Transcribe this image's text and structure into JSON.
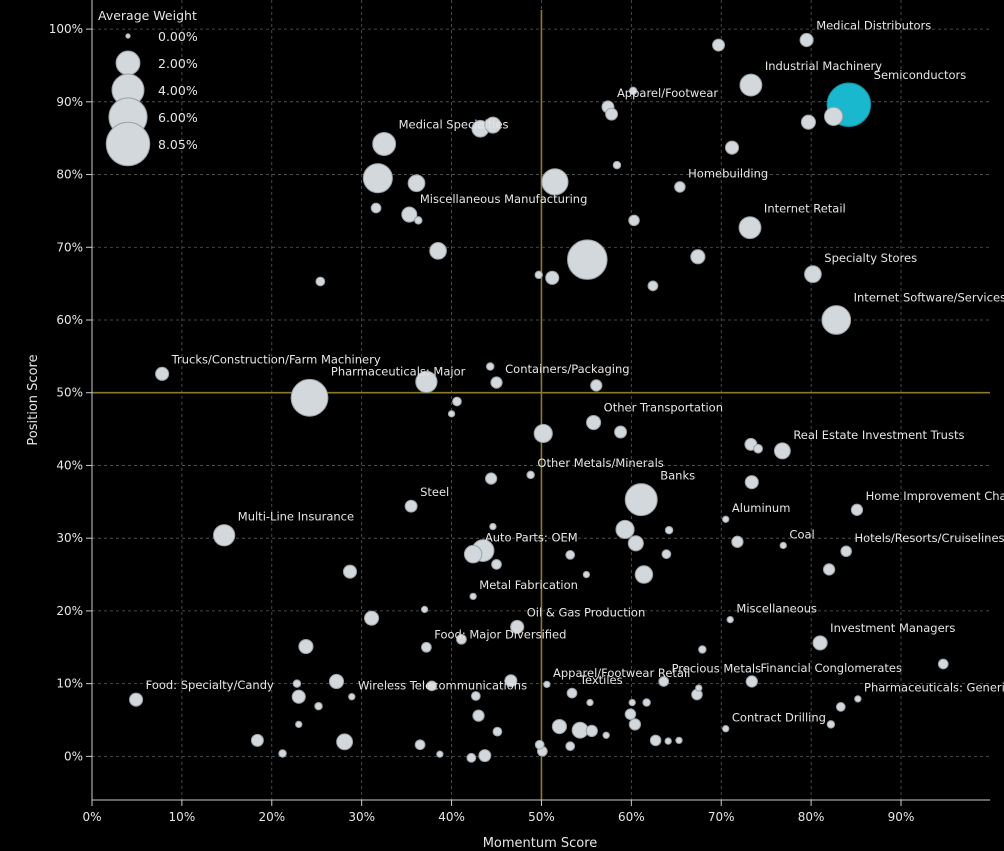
{
  "chart_data": {
    "type": "scatter",
    "xlabel": "Momentum Score",
    "ylabel": "Position Score",
    "xlim": [
      0,
      0.999
    ],
    "ylim": [
      -0.06,
      1.04
    ],
    "x_ticks": [
      "0%",
      "10%",
      "20%",
      "30%",
      "40%",
      "50%",
      "60%",
      "70%",
      "80%",
      "90%"
    ],
    "y_ticks": [
      "0%",
      "10%",
      "20%",
      "30%",
      "40%",
      "50%",
      "60%",
      "70%",
      "80%",
      "90%",
      "100%"
    ],
    "grid": true,
    "reference_lines": {
      "x": 0.5,
      "y": 0.5,
      "color": "#8a7a2a"
    },
    "legend": {
      "title": "Average Weight",
      "placement": "top-left",
      "entries": [
        {
          "label": "0.00%",
          "weight": 0.0
        },
        {
          "label": "2.00%",
          "weight": 2.0
        },
        {
          "label": "4.00%",
          "weight": 4.0
        },
        {
          "label": "6.00%",
          "weight": 6.0
        },
        {
          "label": "8.05%",
          "weight": 8.05
        }
      ]
    },
    "colors": {
      "default": "#d3d8dc",
      "highlight": "#1ab8cf"
    },
    "points": [
      {
        "x": 0.795,
        "y": 0.985,
        "w": 0.4,
        "label": "Medical Distributors"
      },
      {
        "x": 0.697,
        "y": 0.978,
        "w": 0.3
      },
      {
        "x": 0.733,
        "y": 0.923,
        "w": 1.6,
        "label": "Industrial Machinery"
      },
      {
        "x": 0.842,
        "y": 0.896,
        "w": 8.05,
        "label": "Semiconductors",
        "highlight": true
      },
      {
        "x": 0.825,
        "y": 0.88,
        "w": 1.0
      },
      {
        "x": 0.797,
        "y": 0.872,
        "w": 0.5
      },
      {
        "x": 0.602,
        "y": 0.915,
        "w": 0.05
      },
      {
        "x": 0.574,
        "y": 0.893,
        "w": 0.3,
        "label": "Apparel/Footwear"
      },
      {
        "x": 0.578,
        "y": 0.883,
        "w": 0.3
      },
      {
        "x": 0.432,
        "y": 0.863,
        "w": 0.8
      },
      {
        "x": 0.446,
        "y": 0.868,
        "w": 0.7
      },
      {
        "x": 0.325,
        "y": 0.842,
        "w": 1.8,
        "label": "Medical Specialties"
      },
      {
        "x": 0.712,
        "y": 0.837,
        "w": 0.4
      },
      {
        "x": 0.584,
        "y": 0.813,
        "w": 0.05
      },
      {
        "x": 0.318,
        "y": 0.795,
        "w": 3.2
      },
      {
        "x": 0.361,
        "y": 0.788,
        "w": 0.8
      },
      {
        "x": 0.515,
        "y": 0.79,
        "w": 2.5
      },
      {
        "x": 0.654,
        "y": 0.783,
        "w": 0.2,
        "label": "Homebuilding"
      },
      {
        "x": 0.316,
        "y": 0.754,
        "w": 0.15
      },
      {
        "x": 0.353,
        "y": 0.745,
        "w": 0.6,
        "label": "Miscellaneous Manufacturing"
      },
      {
        "x": 0.363,
        "y": 0.737,
        "w": 0.05
      },
      {
        "x": 0.603,
        "y": 0.737,
        "w": 0.2
      },
      {
        "x": 0.732,
        "y": 0.727,
        "w": 1.6,
        "label": "Internet Retail"
      },
      {
        "x": 0.385,
        "y": 0.695,
        "w": 0.8
      },
      {
        "x": 0.551,
        "y": 0.683,
        "w": 6.5
      },
      {
        "x": 0.674,
        "y": 0.687,
        "w": 0.5
      },
      {
        "x": 0.802,
        "y": 0.663,
        "w": 0.8,
        "label": "Specialty Stores"
      },
      {
        "x": 0.497,
        "y": 0.662,
        "w": 0.05
      },
      {
        "x": 0.512,
        "y": 0.658,
        "w": 0.4
      },
      {
        "x": 0.624,
        "y": 0.647,
        "w": 0.15
      },
      {
        "x": 0.254,
        "y": 0.653,
        "w": 0.1
      },
      {
        "x": 0.828,
        "y": 0.6,
        "w": 3.1,
        "label": "Internet Software/Services"
      },
      {
        "x": 0.078,
        "y": 0.526,
        "w": 0.4,
        "label": "Trucks/Construction/Farm Machinery"
      },
      {
        "x": 0.372,
        "y": 0.515,
        "w": 1.5
      },
      {
        "x": 0.443,
        "y": 0.536,
        "w": 0.05
      },
      {
        "x": 0.45,
        "y": 0.514,
        "w": 0.25,
        "label": "Containers/Packaging"
      },
      {
        "x": 0.561,
        "y": 0.51,
        "w": 0.25
      },
      {
        "x": 0.242,
        "y": 0.493,
        "w": 5.5,
        "label": "Pharmaceuticals: Major"
      },
      {
        "x": 0.406,
        "y": 0.488,
        "w": 0.1
      },
      {
        "x": 0.4,
        "y": 0.471,
        "w": 0.02
      },
      {
        "x": 0.558,
        "y": 0.459,
        "w": 0.5,
        "label": "Other Transportation"
      },
      {
        "x": 0.588,
        "y": 0.446,
        "w": 0.3
      },
      {
        "x": 0.502,
        "y": 0.444,
        "w": 1.0
      },
      {
        "x": 0.768,
        "y": 0.42,
        "w": 0.7,
        "label": "Real Estate Investment Trusts"
      },
      {
        "x": 0.733,
        "y": 0.429,
        "w": 0.3
      },
      {
        "x": 0.741,
        "y": 0.423,
        "w": 0.1
      },
      {
        "x": 0.488,
        "y": 0.387,
        "w": 0.05,
        "label": "Other Metals/Minerals"
      },
      {
        "x": 0.444,
        "y": 0.382,
        "w": 0.25
      },
      {
        "x": 0.734,
        "y": 0.377,
        "w": 0.4
      },
      {
        "x": 0.611,
        "y": 0.353,
        "w": 4.0,
        "label": "Banks"
      },
      {
        "x": 0.355,
        "y": 0.344,
        "w": 0.3,
        "label": "Steel"
      },
      {
        "x": 0.851,
        "y": 0.339,
        "w": 0.25,
        "label": "Home Improvement Chains"
      },
      {
        "x": 0.147,
        "y": 0.304,
        "w": 1.5,
        "label": "Multi-Line Insurance"
      },
      {
        "x": 0.446,
        "y": 0.316,
        "w": 0.02
      },
      {
        "x": 0.705,
        "y": 0.326,
        "w": 0.02,
        "label": "Aluminum"
      },
      {
        "x": 0.593,
        "y": 0.312,
        "w": 1.0
      },
      {
        "x": 0.642,
        "y": 0.311,
        "w": 0.05
      },
      {
        "x": 0.605,
        "y": 0.293,
        "w": 0.6
      },
      {
        "x": 0.718,
        "y": 0.295,
        "w": 0.25
      },
      {
        "x": 0.769,
        "y": 0.29,
        "w": 0.02,
        "label": "Coal"
      },
      {
        "x": 0.839,
        "y": 0.282,
        "w": 0.2,
        "label": "Hotels/Resorts/Cruiselines"
      },
      {
        "x": 0.435,
        "y": 0.283,
        "w": 1.6
      },
      {
        "x": 0.424,
        "y": 0.278,
        "w": 0.9,
        "label": "Auto Parts: OEM"
      },
      {
        "x": 0.45,
        "y": 0.264,
        "w": 0.15
      },
      {
        "x": 0.532,
        "y": 0.277,
        "w": 0.1
      },
      {
        "x": 0.639,
        "y": 0.278,
        "w": 0.1
      },
      {
        "x": 0.287,
        "y": 0.254,
        "w": 0.4
      },
      {
        "x": 0.82,
        "y": 0.257,
        "w": 0.25
      },
      {
        "x": 0.614,
        "y": 0.25,
        "w": 0.9
      },
      {
        "x": 0.55,
        "y": 0.25,
        "w": 0.02
      },
      {
        "x": 0.424,
        "y": 0.22,
        "w": 0.02,
        "label": "Metal Fabrication"
      },
      {
        "x": 0.37,
        "y": 0.202,
        "w": 0.02
      },
      {
        "x": 0.311,
        "y": 0.19,
        "w": 0.5
      },
      {
        "x": 0.473,
        "y": 0.178,
        "w": 0.4,
        "label": "Oil & Gas Production"
      },
      {
        "x": 0.71,
        "y": 0.188,
        "w": 0.02,
        "label": "Miscellaneous"
      },
      {
        "x": 0.411,
        "y": 0.161,
        "w": 0.15
      },
      {
        "x": 0.238,
        "y": 0.151,
        "w": 0.5
      },
      {
        "x": 0.372,
        "y": 0.15,
        "w": 0.15,
        "label": "Food: Major Diversified"
      },
      {
        "x": 0.81,
        "y": 0.156,
        "w": 0.5,
        "label": "Investment Managers"
      },
      {
        "x": 0.679,
        "y": 0.147,
        "w": 0.05
      },
      {
        "x": 0.947,
        "y": 0.127,
        "w": 0.15
      },
      {
        "x": 0.272,
        "y": 0.103,
        "w": 0.5
      },
      {
        "x": 0.228,
        "y": 0.1,
        "w": 0.05
      },
      {
        "x": 0.378,
        "y": 0.097,
        "w": 0.15
      },
      {
        "x": 0.466,
        "y": 0.104,
        "w": 0.3
      },
      {
        "x": 0.506,
        "y": 0.099,
        "w": 0.02,
        "label": "Apparel/Footwear Retail"
      },
      {
        "x": 0.636,
        "y": 0.103,
        "w": 0.15,
        "label": "Precious Metals"
      },
      {
        "x": 0.675,
        "y": 0.094,
        "w": 0.02
      },
      {
        "x": 0.734,
        "y": 0.103,
        "w": 0.25,
        "label": "Financial Conglomerates"
      },
      {
        "x": 0.049,
        "y": 0.078,
        "w": 0.4,
        "label": "Food: Specialty/Candy"
      },
      {
        "x": 0.23,
        "y": 0.082,
        "w": 0.4
      },
      {
        "x": 0.252,
        "y": 0.069,
        "w": 0.05
      },
      {
        "x": 0.427,
        "y": 0.083,
        "w": 0.1
      },
      {
        "x": 0.534,
        "y": 0.087,
        "w": 0.15,
        "label": "Textiles"
      },
      {
        "x": 0.554,
        "y": 0.074,
        "w": 0.02
      },
      {
        "x": 0.601,
        "y": 0.074,
        "w": 0.02
      },
      {
        "x": 0.617,
        "y": 0.074,
        "w": 0.05
      },
      {
        "x": 0.673,
        "y": 0.085,
        "w": 0.2
      },
      {
        "x": 0.852,
        "y": 0.079,
        "w": 0.02,
        "label": "Pharmaceuticals: Generic"
      },
      {
        "x": 0.833,
        "y": 0.068,
        "w": 0.1
      },
      {
        "x": 0.822,
        "y": 0.044,
        "w": 0.05
      },
      {
        "x": 0.705,
        "y": 0.038,
        "w": 0.02,
        "label": "Contract Drilling"
      },
      {
        "x": 0.43,
        "y": 0.056,
        "w": 0.25
      },
      {
        "x": 0.599,
        "y": 0.058,
        "w": 0.2
      },
      {
        "x": 0.604,
        "y": 0.044,
        "w": 0.25
      },
      {
        "x": 0.289,
        "y": 0.082,
        "w": 0.02,
        "label": "Wireless Telecommunications"
      },
      {
        "x": 0.23,
        "y": 0.044,
        "w": 0.02
      },
      {
        "x": 0.52,
        "y": 0.041,
        "w": 0.5
      },
      {
        "x": 0.543,
        "y": 0.036,
        "w": 0.7
      },
      {
        "x": 0.556,
        "y": 0.035,
        "w": 0.25
      },
      {
        "x": 0.572,
        "y": 0.029,
        "w": 0.02
      },
      {
        "x": 0.451,
        "y": 0.034,
        "w": 0.1
      },
      {
        "x": 0.184,
        "y": 0.022,
        "w": 0.3
      },
      {
        "x": 0.281,
        "y": 0.02,
        "w": 0.7
      },
      {
        "x": 0.365,
        "y": 0.016,
        "w": 0.15
      },
      {
        "x": 0.498,
        "y": 0.016,
        "w": 0.1
      },
      {
        "x": 0.532,
        "y": 0.014,
        "w": 0.1
      },
      {
        "x": 0.627,
        "y": 0.022,
        "w": 0.2
      },
      {
        "x": 0.641,
        "y": 0.021,
        "w": 0.02
      },
      {
        "x": 0.653,
        "y": 0.022,
        "w": 0.02
      },
      {
        "x": 0.212,
        "y": 0.004,
        "w": 0.05
      },
      {
        "x": 0.387,
        "y": 0.003,
        "w": 0.02
      },
      {
        "x": 0.422,
        "y": -0.002,
        "w": 0.1
      },
      {
        "x": 0.437,
        "y": 0.001,
        "w": 0.3
      },
      {
        "x": 0.501,
        "y": 0.007,
        "w": 0.15
      }
    ]
  }
}
